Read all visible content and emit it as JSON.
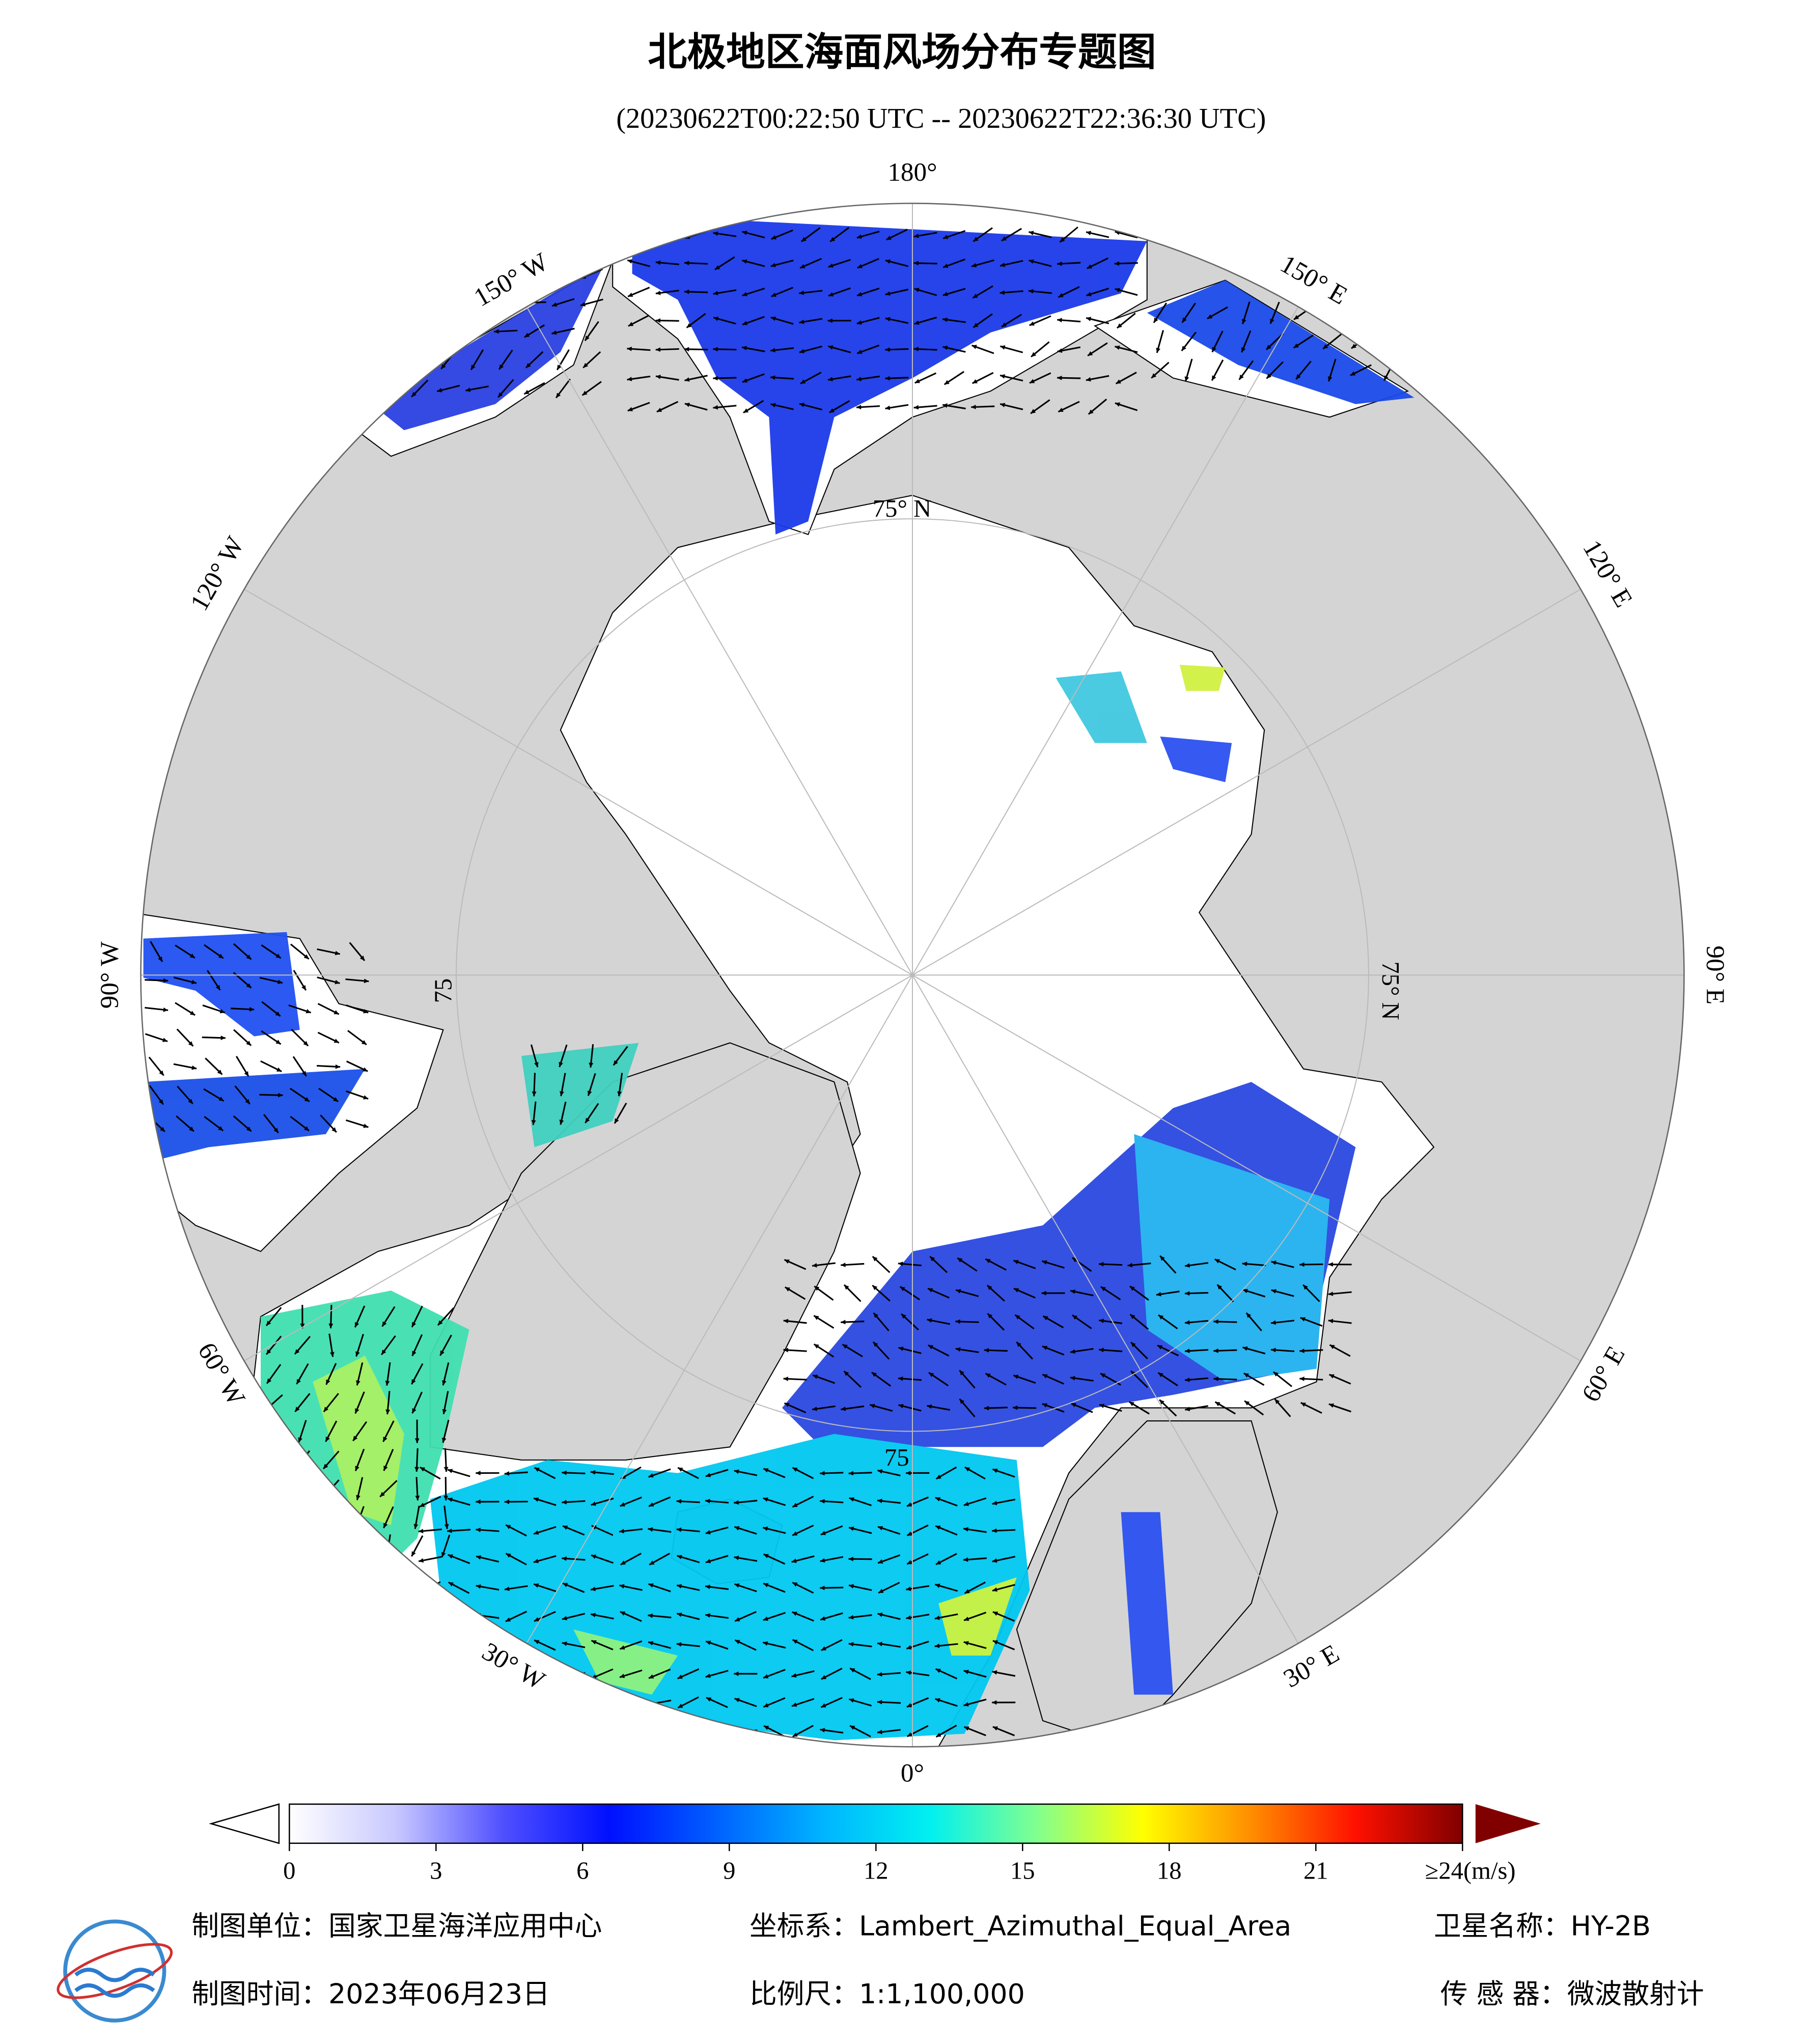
{
  "title": "北极地区海面风场分布专题图",
  "subtitle": "(20230622T00:22:50 UTC -- 20230622T22:36:30 UTC)",
  "map": {
    "longitude_labels": [
      "180°",
      "150° E",
      "120° E",
      "90° E",
      "60° E",
      "30° E",
      "0°",
      "30° W",
      "60° W",
      "90° W",
      "120° W",
      "150° W"
    ],
    "latitude_labels": [
      "75° N",
      "75° N",
      "75",
      "75"
    ]
  },
  "colorbar": {
    "range": [
      0,
      24
    ],
    "ticks": [
      0,
      3,
      6,
      9,
      12,
      15,
      18,
      21,
      {
        "value": 24,
        "label": "≥24(m/s)"
      }
    ],
    "colors": [
      "#ffffff",
      "#c8c8ff",
      "#5050ff",
      "#0010ff",
      "#0060ff",
      "#00b4ff",
      "#00f0f0",
      "#80ff90",
      "#ffff00",
      "#ff9000",
      "#ff1000",
      "#800000"
    ]
  },
  "footer": {
    "producer": "制图单位：国家卫星海洋应用中心",
    "projection": "坐标系：Lambert_Azimuthal_Equal_Area",
    "satellite": "卫星名称：HY-2B",
    "date": "制图时间：2023年06月23日",
    "scale": "比例尺：1:1,100,000",
    "sensor": "传 感 器：微波散射计"
  }
}
